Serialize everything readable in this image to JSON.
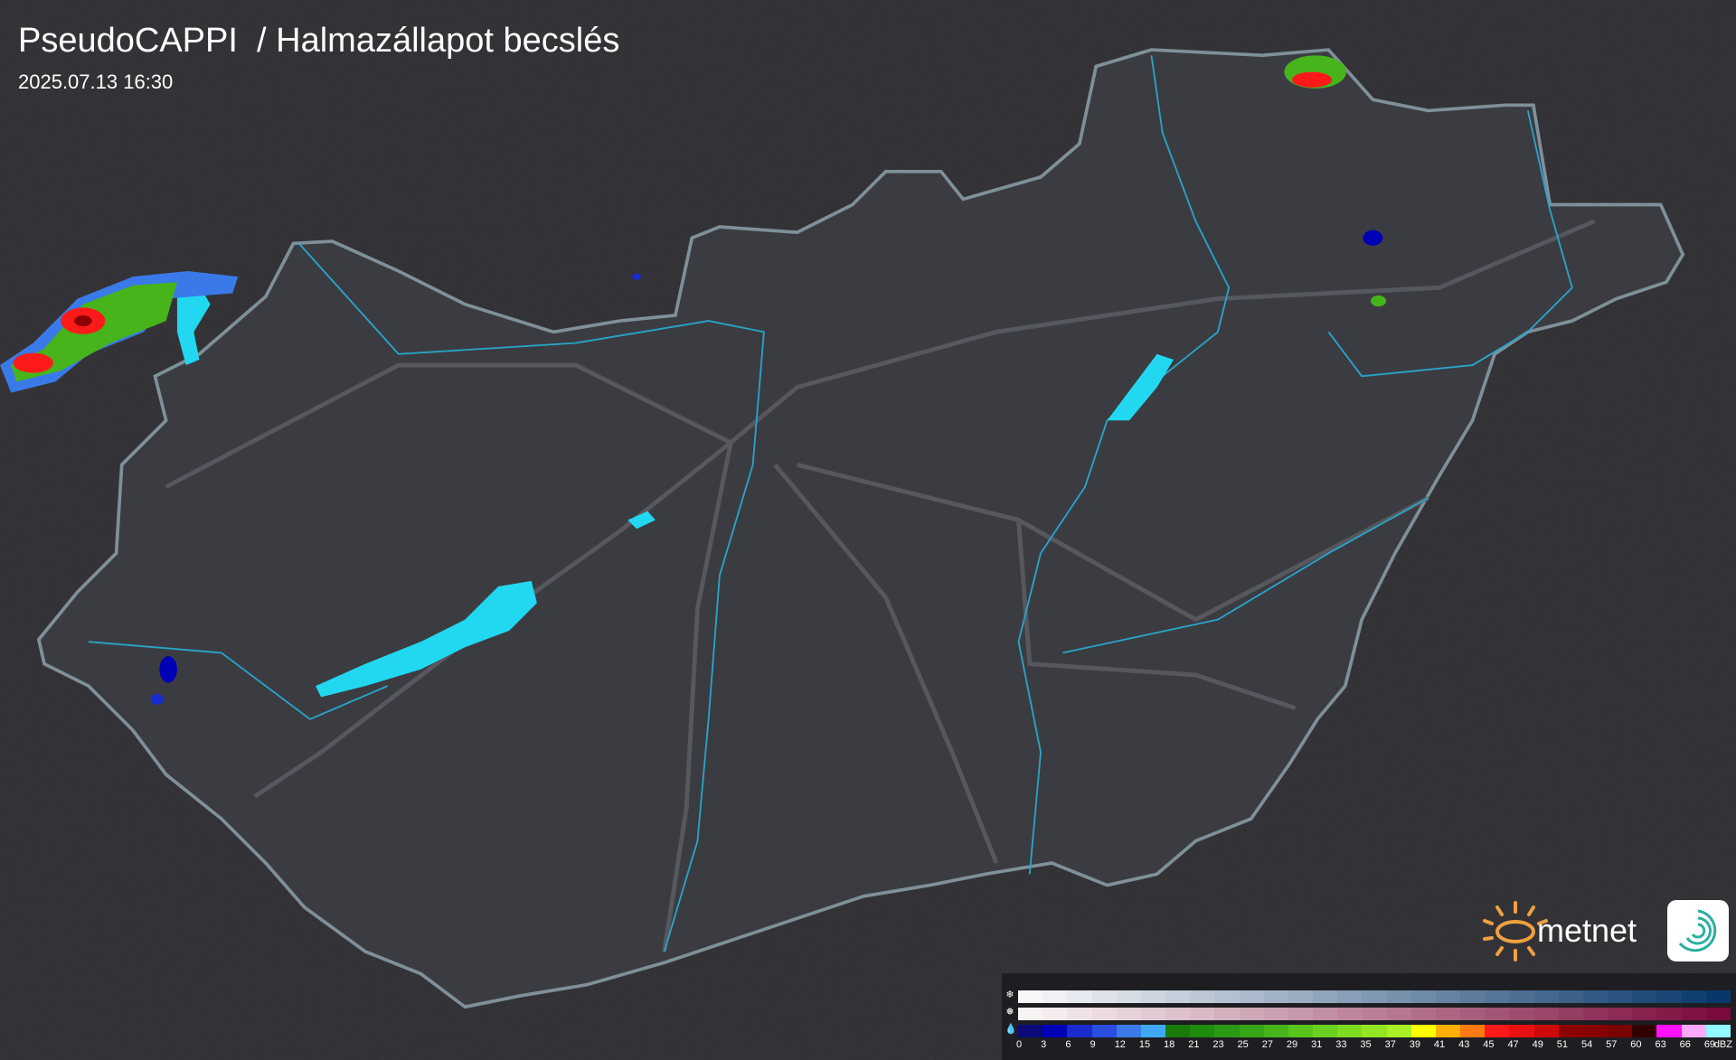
{
  "header": {
    "title": "PseudoCAPPI  / Halmazállapot becslés",
    "timestamp": "2025.07.13 16:30"
  },
  "logo": {
    "text": "metnet",
    "sun_color": "#f0a040",
    "spiral_color": "#2ab0a0"
  },
  "map": {
    "background": "#2a2a2e",
    "country_fill": "#3b3c42",
    "border_color": "#8a9aa4",
    "river_color": "#2aa4c8",
    "road_color": "#6a6a70",
    "lake_color": "#22d8f0"
  },
  "legend": {
    "snow_icon": "snowflake-icon",
    "mixed_icon": "sleet-icon",
    "rain_icon": "raindrop-icon",
    "snow_from": "#f8f8fa",
    "snow_to": "#08386a",
    "mixed_from": "#f8f4f4",
    "mixed_to": "#7a0a3c",
    "rain_colors": [
      "#0a0a7a",
      "#0000b4",
      "#1a2ccc",
      "#2a4ee0",
      "#3a7ae8",
      "#3fa9f5",
      "#1a7a0a",
      "#1e8c0e",
      "#2a9a14",
      "#36a616",
      "#46b41a",
      "#58c41c",
      "#6cd01e",
      "#7edc20",
      "#94e622",
      "#aaf024",
      "#ffff00",
      "#ffb000",
      "#ff7a10",
      "#ff1a1a",
      "#e81010",
      "#cc0a0a",
      "#8c0000",
      "#880000",
      "#7a0000",
      "#300000",
      "#ff10ff",
      "#ffaaff",
      "#90f8ff"
    ],
    "labels": [
      "0",
      "3",
      "6",
      "9",
      "12",
      "15",
      "18",
      "21",
      "23",
      "25",
      "27",
      "29",
      "31",
      "33",
      "35",
      "37",
      "39",
      "41",
      "43",
      "45",
      "47",
      "49",
      "51",
      "54",
      "57",
      "60",
      "63",
      "66",
      "69"
    ],
    "unit": "dBZ"
  }
}
